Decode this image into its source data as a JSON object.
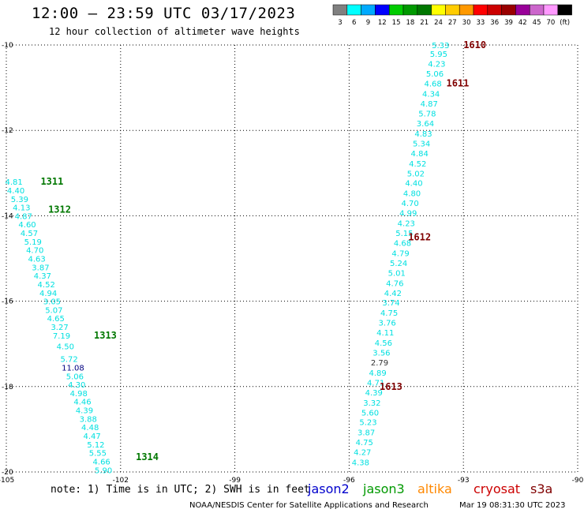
{
  "title": "12:00 – 23:59 UTC 03/17/2023",
  "subtitle": "12 hour collection of altimeter wave heights",
  "note": "note: 1) Time is in UTC; 2) SWH is in feet",
  "legend": [
    {
      "label": "jason2",
      "color": "#0000cc"
    },
    {
      "label": "jason3",
      "color": "#009900"
    },
    {
      "label": "altika",
      "color": "#ff8800"
    },
    {
      "label": "cryosat",
      "color": "#cc0000"
    },
    {
      "label": "s3a",
      "color": "#800000"
    }
  ],
  "footer": "NOAA/NESDIS Center for Satellite Applications and Research",
  "footer_time": "Mar 19 08:31:30 UTC 2023",
  "colorbar": {
    "labels": [
      "3",
      "6",
      "9",
      "12",
      "15",
      "18",
      "21",
      "24",
      "27",
      "30",
      "33",
      "36",
      "39",
      "42",
      "45",
      "70",
      "(ft)"
    ],
    "colors": [
      "#808080",
      "#00ffff",
      "#00aaff",
      "#0000ff",
      "#00cc00",
      "#009900",
      "#007700",
      "#ffff00",
      "#ffcc00",
      "#ff9900",
      "#ff0000",
      "#cc0000",
      "#990000",
      "#990099",
      "#cc66cc",
      "#ff99ff",
      "#000000"
    ]
  },
  "chart_data": {
    "type": "scatter",
    "xlim": [
      -105,
      -90
    ],
    "ylim": [
      -20,
      -10
    ],
    "x_ticks": [
      "-105",
      "-102",
      "-99",
      "-96",
      "-93",
      "-90"
    ],
    "y_ticks": [
      "-10",
      "-12",
      "-14",
      "-16",
      "-18",
      "-20"
    ],
    "grid": true,
    "track_colors": {
      "jason3": "#007700",
      "s3a": "#800000"
    },
    "value_colors": {
      "cyan": "#00e0e0",
      "navy": "#000080",
      "black": "#333333"
    },
    "pass_labels": [
      {
        "label": "1610",
        "lon": -93.0,
        "lat": -10.0,
        "sat": "s3a"
      },
      {
        "label": "1611",
        "lon": -93.45,
        "lat": -10.9,
        "sat": "s3a"
      },
      {
        "label": "1612",
        "lon": -94.45,
        "lat": -14.5,
        "sat": "s3a"
      },
      {
        "label": "1613",
        "lon": -95.2,
        "lat": -18.0,
        "sat": "s3a"
      },
      {
        "label": "1311",
        "lon": -104.1,
        "lat": -13.2,
        "sat": "jason3"
      },
      {
        "label": "1312",
        "lon": -103.9,
        "lat": -13.85,
        "sat": "jason3"
      },
      {
        "label": "1313",
        "lon": -102.7,
        "lat": -16.8,
        "sat": "jason3"
      },
      {
        "label": "1314",
        "lon": -101.6,
        "lat": -19.65,
        "sat": "jason3"
      }
    ],
    "points": [
      {
        "v": "5.33",
        "lon": -93.6,
        "lat": -10.0,
        "c": "cyan"
      },
      {
        "v": "5.95",
        "lon": -93.65,
        "lat": -10.2,
        "c": "cyan"
      },
      {
        "v": "4.23",
        "lon": -93.7,
        "lat": -10.43,
        "c": "cyan"
      },
      {
        "v": "5.06",
        "lon": -93.75,
        "lat": -10.67,
        "c": "cyan"
      },
      {
        "v": "4.68",
        "lon": -93.8,
        "lat": -10.9,
        "c": "cyan"
      },
      {
        "v": "4.34",
        "lon": -93.85,
        "lat": -11.14,
        "c": "cyan"
      },
      {
        "v": "4.87",
        "lon": -93.9,
        "lat": -11.37,
        "c": "cyan"
      },
      {
        "v": "5.78",
        "lon": -93.95,
        "lat": -11.6,
        "c": "cyan"
      },
      {
        "v": "3.64",
        "lon": -94.0,
        "lat": -11.83,
        "c": "cyan"
      },
      {
        "v": "4.83",
        "lon": -94.05,
        "lat": -12.07,
        "c": "cyan"
      },
      {
        "v": "5.34",
        "lon": -94.1,
        "lat": -12.3,
        "c": "cyan"
      },
      {
        "v": "4.84",
        "lon": -94.15,
        "lat": -12.53,
        "c": "cyan"
      },
      {
        "v": "4.52",
        "lon": -94.2,
        "lat": -12.77,
        "c": "cyan"
      },
      {
        "v": "5.02",
        "lon": -94.25,
        "lat": -13.0,
        "c": "cyan"
      },
      {
        "v": "4.40",
        "lon": -94.3,
        "lat": -13.23,
        "c": "cyan"
      },
      {
        "v": "4.80",
        "lon": -94.35,
        "lat": -13.47,
        "c": "cyan"
      },
      {
        "v": "4.70",
        "lon": -94.4,
        "lat": -13.7,
        "c": "cyan"
      },
      {
        "v": "4.99",
        "lon": -94.45,
        "lat": -13.93,
        "c": "cyan"
      },
      {
        "v": "4.23",
        "lon": -94.5,
        "lat": -14.17,
        "c": "cyan"
      },
      {
        "v": "5.15",
        "lon": -94.55,
        "lat": -14.4,
        "c": "cyan"
      },
      {
        "v": "4.68",
        "lon": -94.6,
        "lat": -14.63,
        "c": "cyan"
      },
      {
        "v": "4.79",
        "lon": -94.65,
        "lat": -14.87,
        "c": "cyan"
      },
      {
        "v": "5.24",
        "lon": -94.7,
        "lat": -15.1,
        "c": "cyan"
      },
      {
        "v": "5.01",
        "lon": -94.75,
        "lat": -15.33,
        "c": "cyan"
      },
      {
        "v": "4.76",
        "lon": -94.8,
        "lat": -15.57,
        "c": "cyan"
      },
      {
        "v": "4.42",
        "lon": -94.85,
        "lat": -15.8,
        "c": "cyan"
      },
      {
        "v": "3.74",
        "lon": -94.9,
        "lat": -16.03,
        "c": "cyan"
      },
      {
        "v": "4.75",
        "lon": -94.95,
        "lat": -16.27,
        "c": "cyan"
      },
      {
        "v": "3.76",
        "lon": -95.0,
        "lat": -16.5,
        "c": "cyan"
      },
      {
        "v": "4.11",
        "lon": -95.05,
        "lat": -16.73,
        "c": "cyan"
      },
      {
        "v": "4.56",
        "lon": -95.1,
        "lat": -16.97,
        "c": "cyan"
      },
      {
        "v": "3.56",
        "lon": -95.15,
        "lat": -17.2,
        "c": "cyan"
      },
      {
        "v": "2.79",
        "lon": -95.2,
        "lat": -17.43,
        "c": "black"
      },
      {
        "v": "4.89",
        "lon": -95.25,
        "lat": -17.67,
        "c": "cyan"
      },
      {
        "v": "4.71",
        "lon": -95.3,
        "lat": -17.9,
        "c": "cyan"
      },
      {
        "v": "4.39",
        "lon": -95.35,
        "lat": -18.13,
        "c": "cyan"
      },
      {
        "v": "3.32",
        "lon": -95.4,
        "lat": -18.37,
        "c": "cyan"
      },
      {
        "v": "5.60",
        "lon": -95.45,
        "lat": -18.6,
        "c": "cyan"
      },
      {
        "v": "5.23",
        "lon": -95.5,
        "lat": -18.83,
        "c": "cyan"
      },
      {
        "v": "3.87",
        "lon": -95.55,
        "lat": -19.07,
        "c": "cyan"
      },
      {
        "v": "4.75",
        "lon": -95.6,
        "lat": -19.3,
        "c": "cyan"
      },
      {
        "v": "4.27",
        "lon": -95.65,
        "lat": -19.53,
        "c": "cyan"
      },
      {
        "v": "4.38",
        "lon": -95.7,
        "lat": -19.77,
        "c": "cyan"
      },
      {
        "v": "4.81",
        "lon": -104.8,
        "lat": -13.2,
        "c": "cyan"
      },
      {
        "v": "4.40",
        "lon": -104.75,
        "lat": -13.4,
        "c": "cyan"
      },
      {
        "v": "5.39",
        "lon": -104.65,
        "lat": -13.6,
        "c": "cyan"
      },
      {
        "v": "4.13",
        "lon": -104.6,
        "lat": -13.8,
        "c": "cyan"
      },
      {
        "v": "4.87",
        "lon": -104.55,
        "lat": -14.0,
        "c": "cyan"
      },
      {
        "v": "4.60",
        "lon": -104.45,
        "lat": -14.2,
        "c": "cyan"
      },
      {
        "v": "4.57",
        "lon": -104.4,
        "lat": -14.4,
        "c": "cyan"
      },
      {
        "v": "5.19",
        "lon": -104.3,
        "lat": -14.6,
        "c": "cyan"
      },
      {
        "v": "4.70",
        "lon": -104.25,
        "lat": -14.8,
        "c": "cyan"
      },
      {
        "v": "4.63",
        "lon": -104.2,
        "lat": -15.0,
        "c": "cyan"
      },
      {
        "v": "3.87",
        "lon": -104.1,
        "lat": -15.2,
        "c": "cyan"
      },
      {
        "v": "4.37",
        "lon": -104.05,
        "lat": -15.4,
        "c": "cyan"
      },
      {
        "v": "4.52",
        "lon": -103.95,
        "lat": -15.6,
        "c": "cyan"
      },
      {
        "v": "4.94",
        "lon": -103.9,
        "lat": -15.8,
        "c": "cyan"
      },
      {
        "v": "3.05",
        "lon": -103.8,
        "lat": -16.0,
        "c": "cyan"
      },
      {
        "v": "5.07",
        "lon": -103.75,
        "lat": -16.2,
        "c": "cyan"
      },
      {
        "v": "4.65",
        "lon": -103.7,
        "lat": -16.4,
        "c": "cyan"
      },
      {
        "v": "3.27",
        "lon": -103.6,
        "lat": -16.6,
        "c": "cyan"
      },
      {
        "v": "7.19",
        "lon": -103.55,
        "lat": -16.8,
        "c": "cyan"
      },
      {
        "v": "4.50",
        "lon": -103.45,
        "lat": -17.05,
        "c": "cyan"
      },
      {
        "v": "5.72",
        "lon": -103.35,
        "lat": -17.35,
        "c": "cyan"
      },
      {
        "v": "11.08",
        "lon": -103.25,
        "lat": -17.55,
        "c": "navy"
      },
      {
        "v": "5.06",
        "lon": -103.2,
        "lat": -17.75,
        "c": "cyan"
      },
      {
        "v": "4.30",
        "lon": -103.15,
        "lat": -17.95,
        "c": "cyan"
      },
      {
        "v": "4.98",
        "lon": -103.1,
        "lat": -18.15,
        "c": "cyan"
      },
      {
        "v": "4.46",
        "lon": -103.0,
        "lat": -18.35,
        "c": "cyan"
      },
      {
        "v": "4.39",
        "lon": -102.95,
        "lat": -18.55,
        "c": "cyan"
      },
      {
        "v": "3.88",
        "lon": -102.85,
        "lat": -18.75,
        "c": "cyan"
      },
      {
        "v": "4.48",
        "lon": -102.8,
        "lat": -18.95,
        "c": "cyan"
      },
      {
        "v": "4.47",
        "lon": -102.75,
        "lat": -19.15,
        "c": "cyan"
      },
      {
        "v": "5.12",
        "lon": -102.65,
        "lat": -19.35,
        "c": "cyan"
      },
      {
        "v": "5.55",
        "lon": -102.6,
        "lat": -19.55,
        "c": "cyan"
      },
      {
        "v": "4.66",
        "lon": -102.5,
        "lat": -19.75,
        "c": "cyan"
      },
      {
        "v": "5.90",
        "lon": -102.45,
        "lat": -19.95,
        "c": "cyan"
      }
    ]
  }
}
